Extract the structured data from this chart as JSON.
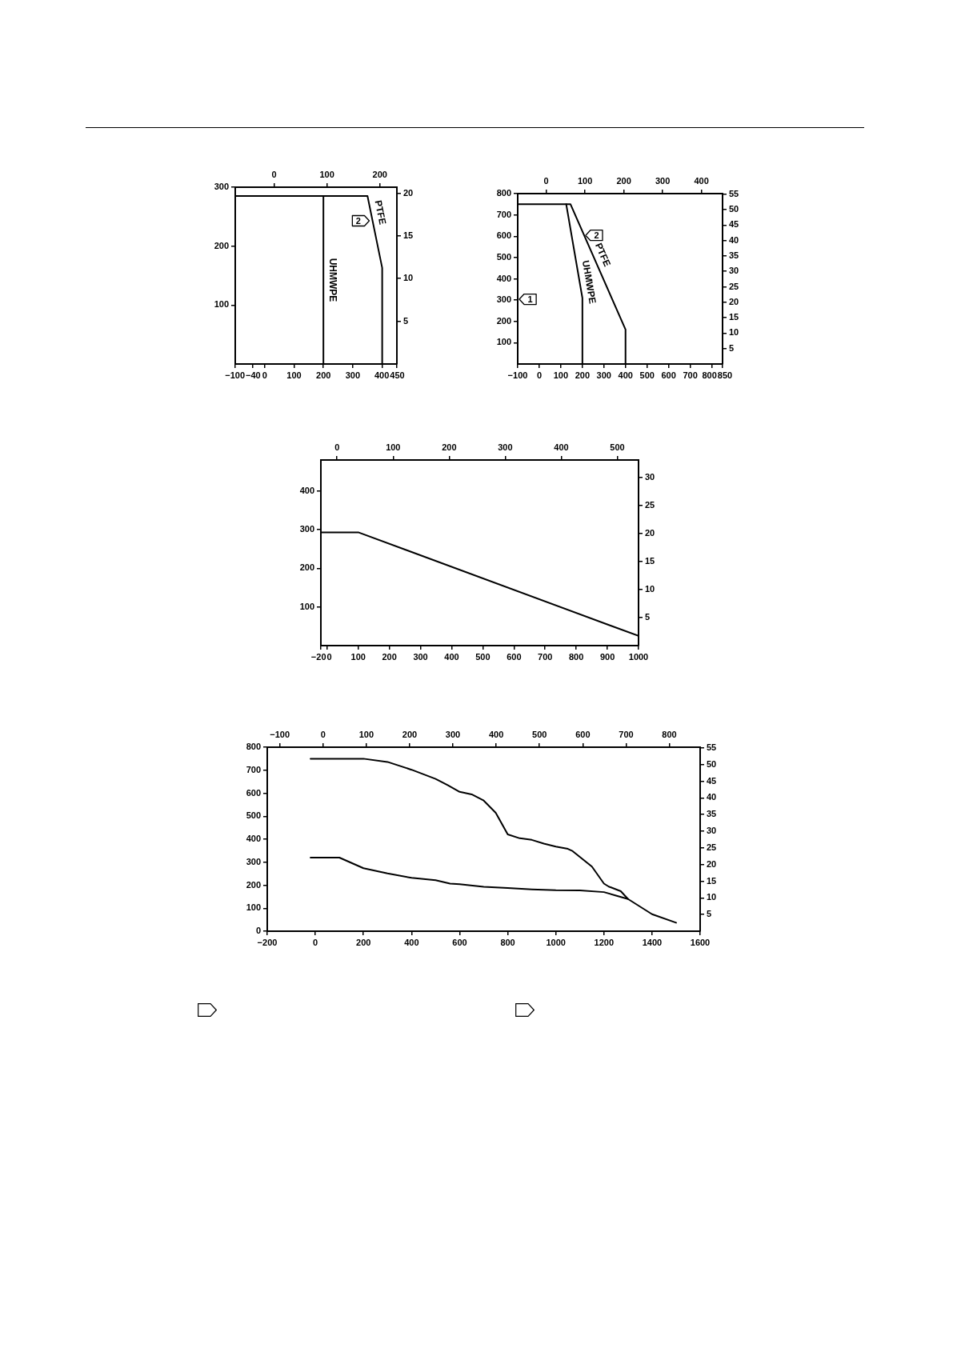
{
  "chart_data": [
    {
      "type": "line",
      "series": [
        {
          "name": "PTFE",
          "color": "#000000",
          "x": [
            -100,
            350,
            400,
            400
          ],
          "values": [
            285,
            285,
            163,
            0
          ]
        },
        {
          "name": "UHMWPE",
          "color": "#000000",
          "x": [
            200,
            200
          ],
          "values": [
            285,
            0
          ]
        }
      ],
      "xlim": [
        -100,
        450
      ],
      "xticks": [
        {
          "value": -100,
          "label": "−100"
        },
        {
          "value": -40,
          "label": "−40"
        },
        0,
        100,
        200,
        300,
        400,
        450
      ],
      "x2lim": [
        -73.3,
        232.2
      ],
      "x2ticks": [
        0,
        100,
        200
      ],
      "ylim": [
        0,
        300
      ],
      "yticks": [
        100,
        200,
        300
      ],
      "y2lim": [
        0,
        20.7
      ],
      "y2ticks": [
        5,
        10,
        15,
        20
      ],
      "annotations": [
        {
          "text": "2",
          "x": 356,
          "y": 243
        }
      ]
    },
    {
      "type": "line",
      "series": [
        {
          "name": "PTFE",
          "color": "#000000",
          "x": [
            -100,
            145,
            400,
            400
          ],
          "values": [
            750,
            750,
            162,
            0
          ]
        },
        {
          "name": "UHMWPE",
          "color": "#000000",
          "x": [
            125,
            200,
            200
          ],
          "values": [
            750,
            310,
            0
          ]
        }
      ],
      "xlim": [
        -100,
        850
      ],
      "xticks": [
        {
          "value": -100,
          "label": "−100"
        },
        0,
        100,
        200,
        300,
        400,
        500,
        600,
        700,
        800,
        850
      ],
      "x2lim": [
        -73.3,
        454.4
      ],
      "x2ticks": [
        0,
        100,
        200,
        300,
        400
      ],
      "ylim": [
        0,
        800
      ],
      "yticks": [
        100,
        200,
        300,
        400,
        500,
        600,
        700,
        800
      ],
      "y2lim": [
        0,
        55.2
      ],
      "y2ticks": [
        5,
        10,
        15,
        20,
        25,
        30,
        35,
        40,
        45,
        50,
        55
      ],
      "annotations": [
        {
          "text": "2",
          "x": 215,
          "y": 604
        },
        "1"
      ]
    },
    {
      "type": "line",
      "series": [
        {
          "color": "#000000",
          "x": [
            -20,
            100,
            1000
          ],
          "values": [
            293,
            293,
            25
          ]
        }
      ],
      "xlim": [
        -20,
        1000
      ],
      "xticks": [
        {
          "value": -20,
          "label": "−20"
        },
        0,
        100,
        200,
        300,
        400,
        500,
        600,
        700,
        800,
        900,
        1000
      ],
      "x2lim": [
        -28.9,
        537.8
      ],
      "x2ticks": [
        0,
        100,
        200,
        300,
        400,
        500
      ],
      "ylim": [
        0,
        480
      ],
      "yticks": [
        100,
        200,
        300,
        400
      ],
      "y2lim": [
        0,
        33.1
      ],
      "y2ticks": [
        5,
        10,
        15,
        20,
        25,
        30
      ]
    },
    {
      "type": "line",
      "series": [
        {
          "color": "#000000",
          "x": [
            -20,
            200,
            300,
            400,
            500,
            550,
            600,
            650,
            700,
            750,
            800,
            850,
            900,
            950,
            1000,
            1050,
            1070,
            1150,
            1200,
            1220,
            1270,
            1300,
            1400,
            1500
          ],
          "values": [
            750,
            750,
            736,
            702,
            662,
            635,
            606,
            595,
            568,
            515,
            421,
            404,
            397,
            381,
            368,
            358,
            348,
            281,
            207,
            194,
            174,
            140,
            74,
            37
          ]
        },
        {
          "color": "#000000",
          "x": [
            -20,
            100,
            200,
            300,
            400,
            500,
            560,
            600,
            700,
            800,
            900,
            1000,
            1100,
            1200,
            1250,
            1300
          ],
          "values": [
            320,
            320,
            274,
            251,
            232,
            222,
            207,
            204,
            193,
            188,
            182,
            178,
            177,
            170,
            155,
            140
          ]
        }
      ],
      "xlim": [
        -200,
        1600
      ],
      "xticks": [
        {
          "value": -200,
          "label": "−200"
        },
        0,
        200,
        400,
        600,
        800,
        1000,
        1200,
        1400,
        1600
      ],
      "x2lim": [
        -128.9,
        871.1
      ],
      "x2ticks": [
        {
          "value": -100,
          "label": "−100"
        },
        0,
        100,
        200,
        300,
        400,
        500,
        600,
        700,
        800
      ],
      "ylim": [
        0,
        800
      ],
      "yticks": [
        0,
        100,
        200,
        300,
        400,
        500,
        600,
        700,
        800
      ],
      "y2lim": [
        0,
        55.2
      ],
      "y2ticks": [
        5,
        10,
        15,
        20,
        25,
        30,
        35,
        40,
        45,
        50,
        55
      ]
    }
  ]
}
